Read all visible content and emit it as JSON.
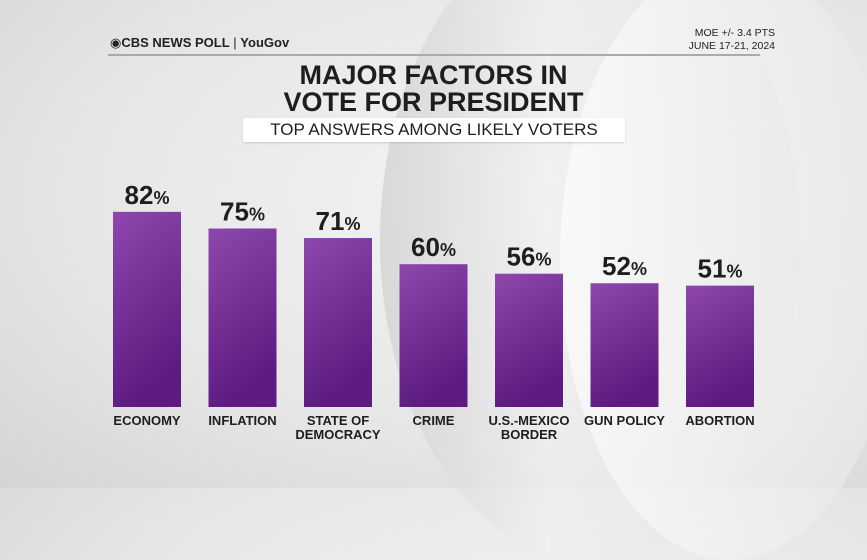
{
  "header": {
    "brand": "CBS NEWS POLL",
    "partner": "YouGov",
    "moe": "MOE +/- 3.4 PTS",
    "dates": "JUNE 17-21, 2024"
  },
  "chart_data": {
    "type": "bar",
    "title": "MAJOR FACTORS IN VOTE FOR PRESIDENT",
    "subtitle": "TOP ANSWERS AMONG LIKELY VOTERS",
    "categories": [
      "ECONOMY",
      "INFLATION",
      "STATE OF DEMOCRACY",
      "CRIME",
      "U.S.-MEXICO BORDER",
      "GUN POLICY",
      "ABORTION"
    ],
    "values": [
      82,
      75,
      71,
      60,
      56,
      52,
      51
    ],
    "labels": [
      "82%",
      "75%",
      "71%",
      "60%",
      "56%",
      "52%",
      "51%"
    ],
    "ylim": [
      0,
      100
    ],
    "grid": false,
    "bar_color": "#8a3fa8"
  }
}
